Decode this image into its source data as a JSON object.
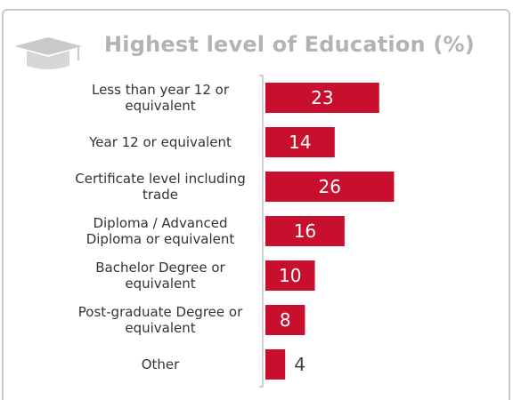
{
  "chart_data": {
    "type": "bar",
    "orientation": "horizontal",
    "title": "Highest level of Education (%)",
    "categories": [
      [
        "Less than year 12 or",
        "equivalent"
      ],
      [
        "Year 12 or equivalent"
      ],
      [
        "Certificate level including",
        "trade"
      ],
      [
        "Diploma / Advanced",
        "Diploma or equivalent"
      ],
      [
        "Bachelor Degree or",
        "equivalent"
      ],
      [
        "Post-graduate Degree or",
        "equivalent"
      ],
      [
        "Other"
      ]
    ],
    "values": [
      23,
      14,
      26,
      16,
      10,
      8,
      4
    ],
    "xlim": [
      0,
      27
    ],
    "grid": false,
    "bar_color": "#c8102e",
    "header_icon": "graduation-cap-icon"
  }
}
